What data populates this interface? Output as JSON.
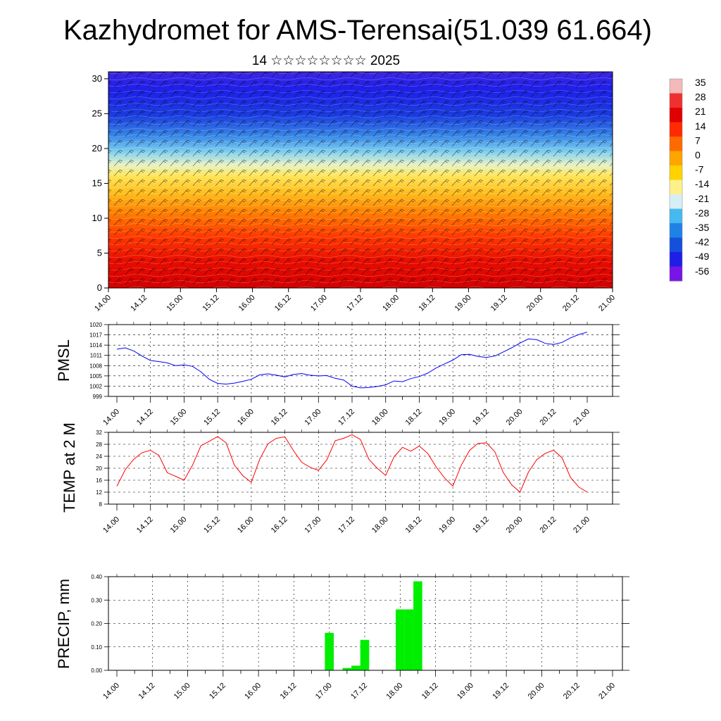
{
  "header": {
    "title": "Kazhydromet for AMS-Terensai(51.039 61.664)",
    "subtitle": "14 ☆☆☆☆☆☆☆☆ 2025"
  },
  "chart_data": [
    {
      "type": "heatmap",
      "id": "upper-air",
      "x_tick_labels": [
        "14.00",
        "14.12",
        "15.00",
        "15.12",
        "16.00",
        "16.12",
        "17.00",
        "17.12",
        "18.00",
        "18.12",
        "19.00",
        "19.12",
        "20.00",
        "20.12",
        "21.00"
      ],
      "y_ticks": [
        0,
        5,
        10,
        15,
        20,
        25,
        30
      ],
      "ylim": [
        0,
        31
      ],
      "colorbar_ticks": [
        "35",
        "28",
        "21",
        "14",
        "7",
        "0",
        "-7",
        "-14",
        "-21",
        "-28",
        "-35",
        "-42",
        "-49",
        "-56"
      ],
      "colorbar_colors": [
        "#f4b9b9",
        "#f03030",
        "#e00000",
        "#ff2a00",
        "#ff6a00",
        "#ffa500",
        "#ffd200",
        "#fff08c",
        "#d7eef5",
        "#46b9f0",
        "#1e82e6",
        "#1450dc",
        "#1e1ee6",
        "#7814e6"
      ],
      "series_note": "temperature shading with wind barbs"
    },
    {
      "type": "line",
      "id": "pmsl",
      "ylabel": "PMSL",
      "ylim": [
        999,
        1020
      ],
      "y_ticks": [
        999,
        1002,
        1005,
        1008,
        1011,
        1014,
        1017,
        1020
      ],
      "x_tick_labels": [
        "14.00",
        "14.12",
        "15.00",
        "15.12",
        "16.00",
        "16.12",
        "17.00",
        "17.12",
        "18.00",
        "18.12",
        "19.00",
        "19.12",
        "20.00",
        "20.12",
        "21.00"
      ],
      "color": "#0000ff",
      "x": [
        0,
        3,
        6,
        9,
        12,
        15,
        18,
        21,
        24,
        27,
        30,
        33,
        36,
        39,
        42,
        45,
        48,
        51,
        54,
        57,
        60,
        63,
        66,
        69,
        72,
        75,
        78,
        81,
        84,
        87,
        90,
        93,
        96,
        99,
        102,
        105,
        108,
        111,
        114,
        117,
        120,
        123,
        126,
        129,
        132,
        135,
        138,
        141,
        144,
        147,
        150,
        153,
        156,
        159,
        162,
        165,
        168
      ],
      "values": [
        1012.8,
        1013.2,
        1012.3,
        1010.8,
        1009.5,
        1009.2,
        1008.8,
        1008.0,
        1008.2,
        1007.8,
        1006.2,
        1004.0,
        1002.8,
        1002.6,
        1002.9,
        1003.4,
        1004.0,
        1005.3,
        1005.6,
        1005.2,
        1004.7,
        1005.4,
        1005.7,
        1005.2,
        1005.0,
        1005.1,
        1004.3,
        1003.8,
        1002.0,
        1001.5,
        1001.6,
        1001.9,
        1002.4,
        1003.5,
        1003.3,
        1004.2,
        1004.8,
        1005.8,
        1007.3,
        1008.5,
        1009.6,
        1011.2,
        1011.3,
        1010.7,
        1010.4,
        1010.8,
        1012.0,
        1013.2,
        1014.6,
        1015.8,
        1015.6,
        1014.5,
        1014.2,
        1014.8,
        1016.1,
        1017.1,
        1017.8
      ]
    },
    {
      "type": "line",
      "id": "temp2m",
      "ylabel": "TEMP at 2 M",
      "ylim": [
        8,
        32
      ],
      "y_ticks": [
        8,
        12,
        16,
        20,
        24,
        28,
        32
      ],
      "x_tick_labels": [
        "14.00",
        "14.12",
        "15.00",
        "15.12",
        "16.00",
        "16.12",
        "17.00",
        "17.12",
        "18.00",
        "18.12",
        "19.00",
        "19.12",
        "20.00",
        "20.12",
        "21.00"
      ],
      "color": "#ff0000",
      "x": [
        0,
        3,
        6,
        9,
        12,
        15,
        18,
        21,
        24,
        27,
        30,
        33,
        36,
        39,
        42,
        45,
        48,
        51,
        54,
        57,
        60,
        63,
        66,
        69,
        72,
        75,
        78,
        81,
        84,
        87,
        90,
        93,
        96,
        99,
        102,
        105,
        108,
        111,
        114,
        117,
        120,
        123,
        126,
        129,
        132,
        135,
        138,
        141,
        144,
        147,
        150,
        153,
        156,
        159,
        162,
        165,
        168
      ],
      "values": [
        14.0,
        19.5,
        23.0,
        25.2,
        26.0,
        24.3,
        18.5,
        17.3,
        16.0,
        21.0,
        27.5,
        29.0,
        30.6,
        28.5,
        21.0,
        17.5,
        15.3,
        23.0,
        28.2,
        30.0,
        30.5,
        26.0,
        22.0,
        20.3,
        19.3,
        22.8,
        29.2,
        30.0,
        31.2,
        29.6,
        23.0,
        20.0,
        17.6,
        23.8,
        27.0,
        25.7,
        27.4,
        25.0,
        20.5,
        16.8,
        14.0,
        21.0,
        26.0,
        28.3,
        28.5,
        25.5,
        18.6,
        14.5,
        12.0,
        18.7,
        22.9,
        25.0,
        26.0,
        23.5,
        17.0,
        13.7,
        12.0
      ]
    },
    {
      "type": "bar",
      "id": "precip",
      "ylabel": "PRECIP, mm",
      "ylim": [
        0,
        0.4
      ],
      "y_ticks": [
        "0.00",
        "0.10",
        "0.20",
        "0.30",
        "0.40"
      ],
      "x_tick_labels": [
        "14.00",
        "14.12",
        "15.00",
        "15.12",
        "16.00",
        "16.12",
        "17.00",
        "17.12",
        "18.00",
        "18.12",
        "19.00",
        "19.12",
        "20.00",
        "20.12",
        "21.00"
      ],
      "color": "#00ee00",
      "x": [
        72,
        75,
        78,
        81,
        84,
        96,
        99,
        102
      ],
      "values": [
        0.16,
        0.0,
        0.01,
        0.02,
        0.13,
        0.26,
        0.26,
        0.38
      ]
    }
  ]
}
